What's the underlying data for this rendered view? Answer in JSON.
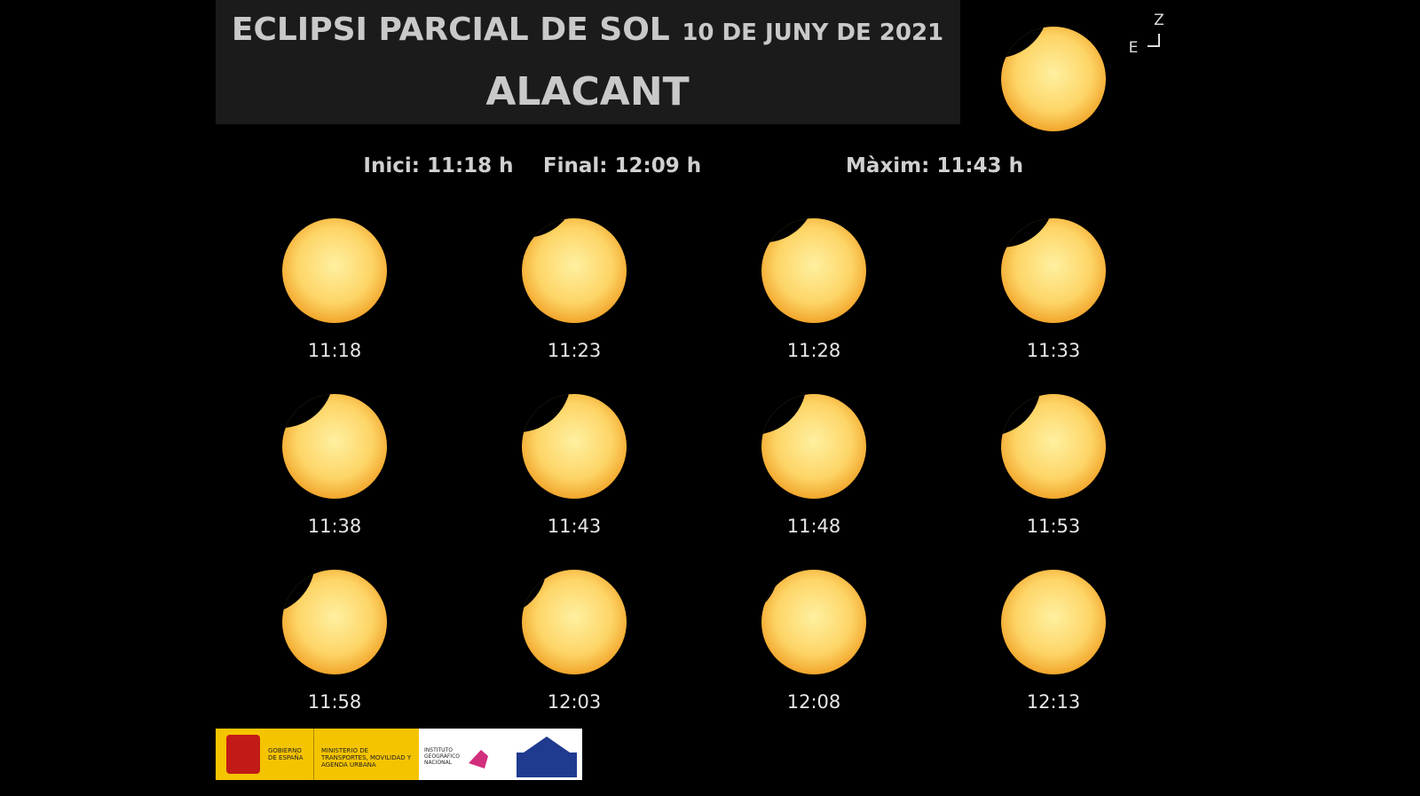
{
  "header": {
    "title": "ECLIPSI PARCIAL DE SOL",
    "date": "10 DE JUNY DE 2021",
    "place": "ALACANT"
  },
  "compass": {
    "north": "Z",
    "east": "E"
  },
  "summary": {
    "start": "Inici: 11:18 h",
    "end": "Final: 12:09 h",
    "maximum": "Màxim: 11:43 h"
  },
  "times": [
    "11:18",
    "11:23",
    "11:28",
    "11:33",
    "11:38",
    "11:43",
    "11:48",
    "11:53",
    "11:58",
    "12:03",
    "12:08",
    "12:13"
  ],
  "footer": {
    "government": "GOBIERNO DE ESPAÑA",
    "ministry": "MINISTERIO DE TRANSPORTES, MOVILIDAD Y AGENDA URBANA",
    "institute": "INSTITUTO GEOGRÁFICO NACIONAL"
  }
}
